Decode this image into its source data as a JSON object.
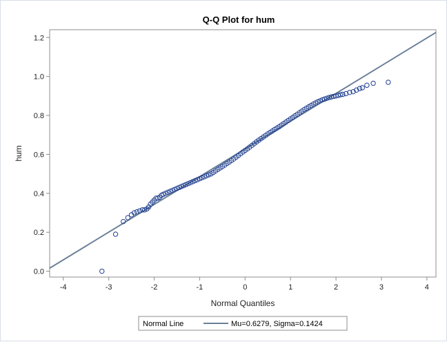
{
  "chart_data": {
    "type": "scatter",
    "title": "Q-Q Plot for hum",
    "xlabel": "Normal Quantiles",
    "ylabel": "hum",
    "xlim": [
      -4.3,
      4.2
    ],
    "ylim": [
      -0.03,
      1.24
    ],
    "x_ticks": [
      "-4",
      "-3",
      "-2",
      "-1",
      "0",
      "1",
      "2",
      "3",
      "4"
    ],
    "y_ticks": [
      "0.0",
      "0.2",
      "0.4",
      "0.6",
      "0.8",
      "1.0",
      "1.2"
    ],
    "grid": false,
    "legend": {
      "placement": "bottom",
      "label": "Normal Line",
      "entry": "Mu=0.6279, Sigma=0.1424"
    },
    "reference_line": {
      "mu": 0.6279,
      "sigma": 0.1424
    },
    "series": [
      {
        "marker": "open-circle",
        "points": [
          [
            -3.15,
            0.0
          ],
          [
            -2.85,
            0.19
          ],
          [
            -2.68,
            0.255
          ],
          [
            -2.58,
            0.275
          ],
          [
            -2.5,
            0.29
          ],
          [
            -2.44,
            0.3
          ],
          [
            -2.38,
            0.305
          ],
          [
            -2.32,
            0.31
          ],
          [
            -2.26,
            0.315
          ],
          [
            -2.21,
            0.315
          ],
          [
            -2.16,
            0.32
          ],
          [
            -2.12,
            0.33
          ],
          [
            -2.08,
            0.345
          ],
          [
            -2.04,
            0.355
          ],
          [
            -2.0,
            0.365
          ],
          [
            -1.96,
            0.375
          ],
          [
            -1.92,
            0.375
          ],
          [
            -1.88,
            0.38
          ],
          [
            -1.84,
            0.39
          ],
          [
            -1.8,
            0.395
          ],
          [
            -1.75,
            0.4
          ],
          [
            -1.7,
            0.405
          ],
          [
            -1.65,
            0.41
          ],
          [
            -1.6,
            0.415
          ],
          [
            -1.55,
            0.42
          ],
          [
            -1.5,
            0.425
          ],
          [
            -1.45,
            0.43
          ],
          [
            -1.4,
            0.435
          ],
          [
            -1.35,
            0.44
          ],
          [
            -1.3,
            0.445
          ],
          [
            -1.25,
            0.45
          ],
          [
            -1.2,
            0.455
          ],
          [
            -1.15,
            0.46
          ],
          [
            -1.1,
            0.465
          ],
          [
            -1.05,
            0.47
          ],
          [
            -1.0,
            0.475
          ],
          [
            -0.95,
            0.48
          ],
          [
            -0.9,
            0.485
          ],
          [
            -0.85,
            0.49
          ],
          [
            -0.8,
            0.495
          ],
          [
            -0.75,
            0.5
          ],
          [
            -0.7,
            0.507
          ],
          [
            -0.65,
            0.515
          ],
          [
            -0.6,
            0.523
          ],
          [
            -0.55,
            0.53
          ],
          [
            -0.5,
            0.537
          ],
          [
            -0.45,
            0.545
          ],
          [
            -0.4,
            0.553
          ],
          [
            -0.35,
            0.56
          ],
          [
            -0.3,
            0.568
          ],
          [
            -0.25,
            0.576
          ],
          [
            -0.2,
            0.585
          ],
          [
            -0.15,
            0.594
          ],
          [
            -0.1,
            0.603
          ],
          [
            -0.05,
            0.612
          ],
          [
            0.0,
            0.62
          ],
          [
            0.05,
            0.628
          ],
          [
            0.1,
            0.637
          ],
          [
            0.15,
            0.646
          ],
          [
            0.2,
            0.655
          ],
          [
            0.25,
            0.664
          ],
          [
            0.3,
            0.673
          ],
          [
            0.35,
            0.681
          ],
          [
            0.4,
            0.689
          ],
          [
            0.45,
            0.697
          ],
          [
            0.5,
            0.705
          ],
          [
            0.55,
            0.713
          ],
          [
            0.6,
            0.72
          ],
          [
            0.65,
            0.728
          ],
          [
            0.7,
            0.735
          ],
          [
            0.75,
            0.742
          ],
          [
            0.8,
            0.75
          ],
          [
            0.85,
            0.758
          ],
          [
            0.9,
            0.766
          ],
          [
            0.95,
            0.774
          ],
          [
            1.0,
            0.782
          ],
          [
            1.05,
            0.79
          ],
          [
            1.1,
            0.798
          ],
          [
            1.15,
            0.806
          ],
          [
            1.2,
            0.814
          ],
          [
            1.25,
            0.822
          ],
          [
            1.3,
            0.83
          ],
          [
            1.35,
            0.837
          ],
          [
            1.4,
            0.844
          ],
          [
            1.45,
            0.851
          ],
          [
            1.5,
            0.858
          ],
          [
            1.55,
            0.864
          ],
          [
            1.6,
            0.87
          ],
          [
            1.65,
            0.875
          ],
          [
            1.7,
            0.88
          ],
          [
            1.75,
            0.884
          ],
          [
            1.8,
            0.888
          ],
          [
            1.85,
            0.892
          ],
          [
            1.9,
            0.895
          ],
          [
            1.95,
            0.898
          ],
          [
            2.0,
            0.9
          ],
          [
            2.05,
            0.903
          ],
          [
            2.1,
            0.906
          ],
          [
            2.15,
            0.908
          ],
          [
            2.22,
            0.912
          ],
          [
            2.3,
            0.918
          ],
          [
            2.38,
            0.922
          ],
          [
            2.45,
            0.93
          ],
          [
            2.52,
            0.938
          ],
          [
            2.58,
            0.942
          ],
          [
            2.68,
            0.955
          ],
          [
            2.82,
            0.965
          ],
          [
            3.15,
            0.97
          ]
        ]
      }
    ]
  }
}
